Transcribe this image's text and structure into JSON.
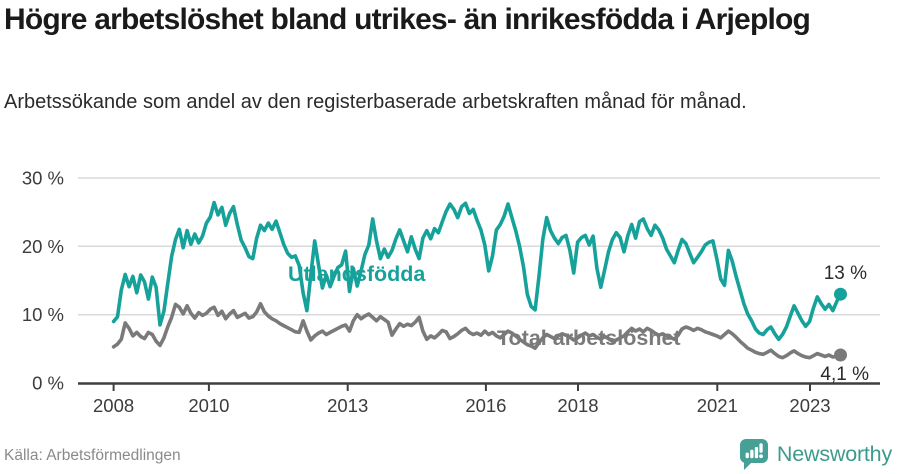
{
  "header": {
    "title": "Högre arbetslöshet bland utrikes- än inrikesfödda i Arjeplog",
    "subtitle": "Arbetssökande som andel av den registerbaserade arbetskraften månad för månad."
  },
  "chart": {
    "y_tick_labels": [
      "30 %",
      "20 %",
      "10 %",
      "0 %"
    ],
    "x_tick_labels": [
      "2008",
      "2010",
      "2013",
      "2016",
      "2018",
      "2021",
      "2023"
    ]
  },
  "chart_data": {
    "type": "line",
    "title": "Högre arbetslöshet bland utrikes- än inrikesfödda i Arjeplog",
    "xlabel": "",
    "ylabel": "Arbetssökande som andel av den registerbaserade arbetskraften",
    "x_unit": "month",
    "x_start": "2008-01",
    "x_end": "2023-09",
    "ylim": [
      0,
      30
    ],
    "y_ticks_pct": [
      0,
      10,
      20,
      30
    ],
    "x_ticks_years": [
      2008,
      2010,
      2013,
      2016,
      2018,
      2021,
      2023
    ],
    "grid": "horizontal",
    "legend_position": "inline-labels",
    "series": [
      {
        "name": "Utlandsfödda",
        "color": "#16a29a",
        "end_label": "13 %",
        "end_value": 13,
        "values": [
          9.0,
          9.7,
          13.6,
          15.9,
          14.1,
          15.6,
          13.2,
          15.8,
          14.8,
          12.3,
          15.5,
          14.0,
          8.5,
          10.5,
          14.5,
          18.5,
          21.0,
          22.5,
          19.8,
          22.3,
          20.3,
          21.8,
          20.5,
          21.5,
          23.4,
          24.3,
          26.4,
          24.6,
          25.7,
          23.1,
          24.8,
          25.8,
          23.2,
          20.9,
          19.8,
          18.5,
          18.2,
          21.2,
          23.1,
          22.3,
          23.4,
          22.5,
          23.7,
          22.0,
          20.3,
          19.0,
          18.4,
          18.6,
          17.2,
          13.2,
          10.6,
          15.8,
          20.8,
          17.3,
          13.9,
          15.8,
          14.1,
          15.6,
          16.9,
          17.3,
          19.3,
          13.4,
          16.8,
          14.2,
          16.4,
          18.8,
          20.2,
          24.0,
          20.8,
          18.2,
          19.6,
          18.4,
          19.4,
          21.1,
          22.4,
          20.8,
          19.2,
          21.4,
          19.6,
          18.2,
          21.2,
          22.3,
          21.1,
          22.6,
          22.0,
          23.6,
          25.1,
          26.2,
          25.4,
          24.2,
          25.8,
          26.3,
          24.8,
          25.4,
          23.8,
          22.4,
          20.2,
          16.4,
          18.6,
          22.4,
          23.2,
          24.4,
          26.2,
          24.2,
          22.3,
          20.0,
          17.0,
          13.0,
          11.2,
          10.7,
          15.5,
          21.0,
          24.2,
          22.3,
          21.2,
          20.4,
          21.3,
          21.6,
          19.4,
          16.1,
          20.6,
          21.3,
          21.6,
          20.2,
          21.5,
          16.8,
          14.0,
          16.6,
          19.2,
          21.0,
          22.0,
          21.3,
          19.2,
          21.6,
          23.2,
          21.2,
          23.6,
          24.0,
          22.6,
          21.6,
          23.1,
          22.4,
          21.2,
          19.6,
          18.6,
          17.6,
          19.4,
          21.0,
          20.4,
          19.0,
          17.6,
          18.4,
          19.2,
          20.2,
          20.6,
          20.8,
          18.2,
          15.2,
          14.3,
          19.4,
          17.8,
          15.6,
          13.6,
          11.6,
          10.1,
          9.1,
          7.9,
          7.3,
          7.1,
          7.8,
          8.2,
          7.2,
          6.4,
          7.1,
          8.2,
          9.8,
          11.3,
          10.2,
          9.1,
          8.3,
          9.0,
          11.0,
          12.6,
          11.6,
          10.8,
          11.5,
          10.6,
          11.9,
          13.0
        ]
      },
      {
        "name": "Total arbetslöshet",
        "color": "#7a7a7a",
        "end_label": "4,1 %",
        "end_value": 4.1,
        "values": [
          5.3,
          5.7,
          6.4,
          8.8,
          8.0,
          6.9,
          7.4,
          6.8,
          6.5,
          7.4,
          7.1,
          6.1,
          5.5,
          6.6,
          8.2,
          9.6,
          11.5,
          11.1,
          10.1,
          11.3,
          10.2,
          9.5,
          10.3,
          9.9,
          10.2,
          10.8,
          11.1,
          9.9,
          10.5,
          9.4,
          10.1,
          10.6,
          9.6,
          9.9,
          10.2,
          9.5,
          9.7,
          10.4,
          11.6,
          10.4,
          9.8,
          9.4,
          9.1,
          8.7,
          8.4,
          8.1,
          7.8,
          7.5,
          7.4,
          9.1,
          7.6,
          6.3,
          6.9,
          7.3,
          7.6,
          7.1,
          7.4,
          7.7,
          8.0,
          8.3,
          8.5,
          7.6,
          9.1,
          10.0,
          9.4,
          9.8,
          10.1,
          9.6,
          9.1,
          9.7,
          9.3,
          8.9,
          7.0,
          7.9,
          8.7,
          8.3,
          8.6,
          8.4,
          8.9,
          9.6,
          7.6,
          6.4,
          6.9,
          6.6,
          7.1,
          7.7,
          7.5,
          6.5,
          6.8,
          7.2,
          7.7,
          8.0,
          7.4,
          7.1,
          7.3,
          7.0,
          7.6,
          7.1,
          7.4,
          6.9,
          6.6,
          7.1,
          7.6,
          7.3,
          6.9,
          6.4,
          6.0,
          5.6,
          5.4,
          5.1,
          5.9,
          6.6,
          7.1,
          6.8,
          6.5,
          6.9,
          7.2,
          7.0,
          6.7,
          6.3,
          6.6,
          7.0,
          7.3,
          6.9,
          7.1,
          6.7,
          6.4,
          6.8,
          6.5,
          6.1,
          6.3,
          6.6,
          6.9,
          7.5,
          8.0,
          7.6,
          7.9,
          7.5,
          8.0,
          7.7,
          7.3,
          7.0,
          7.2,
          6.9,
          6.7,
          6.4,
          7.0,
          7.9,
          8.2,
          8.0,
          7.7,
          8.0,
          7.8,
          7.5,
          7.3,
          7.1,
          6.9,
          6.6,
          7.1,
          7.6,
          7.2,
          6.7,
          6.1,
          5.6,
          5.1,
          4.8,
          4.5,
          4.3,
          4.2,
          4.5,
          4.8,
          4.3,
          3.9,
          3.7,
          4.0,
          4.4,
          4.7,
          4.3,
          4.0,
          3.8,
          3.7,
          4.0,
          4.3,
          4.1,
          3.9,
          4.1,
          3.8,
          3.9,
          4.1
        ]
      }
    ]
  },
  "footer": {
    "source": "Källa: Arbetsförmedlingen",
    "brand": "Newsworthy"
  },
  "colors": {
    "accent_teal": "#16a29a",
    "series_gray": "#7a7a7a",
    "brand_teal": "#46a095"
  }
}
